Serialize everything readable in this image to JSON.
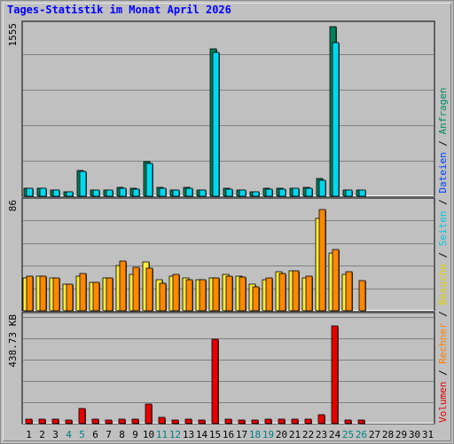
{
  "title": "Tages-Statistik im Monat April 2026",
  "legend": {
    "separator": "/",
    "items": [
      {
        "label": "Anfragen",
        "color": "#008a60"
      },
      {
        "label": "Dateien",
        "color": "#0040ff"
      },
      {
        "label": "Seiten",
        "color": "#00c8e0"
      },
      {
        "label": "Besuche",
        "color": "#e0d000"
      },
      {
        "label": "Rechner",
        "color": "#ff8000"
      },
      {
        "label": "Volumen",
        "color": "#e00000"
      }
    ]
  },
  "colors": {
    "background": "#c0c0c0",
    "requests": "#00805a",
    "files": "#00d8f0",
    "visits": "#ffee33",
    "hosts": "#ff8800",
    "volume": "#e80000",
    "weekend_day": "#008080",
    "weekday": "#000000",
    "title": "#0000ff"
  },
  "chart_data": {
    "type": "bar",
    "categories": [
      "1",
      "2",
      "3",
      "4",
      "5",
      "6",
      "7",
      "8",
      "9",
      "10",
      "11",
      "12",
      "13",
      "14",
      "15",
      "16",
      "17",
      "18",
      "19",
      "20",
      "21",
      "22",
      "23",
      "24",
      "25",
      "26",
      "27",
      "28",
      "29",
      "30",
      "31"
    ],
    "weekend_days": [
      "4",
      "5",
      "11",
      "12",
      "18",
      "19",
      "25",
      "26"
    ],
    "panels": [
      {
        "name": "top",
        "max_label": "1555",
        "max": 1555,
        "series": [
          {
            "name": "Anfragen",
            "values": [
              70,
              70,
              60,
              40,
              240,
              60,
              60,
              80,
              70,
              320,
              80,
              60,
              80,
              60,
              1350,
              70,
              60,
              40,
              70,
              70,
              70,
              80,
              160,
              1555,
              60,
              60,
              0,
              0,
              0,
              0,
              0
            ]
          },
          {
            "name": "Dateien",
            "values": [
              70,
              70,
              60,
              40,
              225,
              60,
              60,
              75,
              65,
              305,
              75,
              60,
              75,
              60,
              1320,
              65,
              60,
              40,
              65,
              65,
              70,
              70,
              150,
              1410,
              60,
              60,
              0,
              0,
              0,
              0,
              0
            ]
          }
        ]
      },
      {
        "name": "middle",
        "max_label": "86",
        "max": 86,
        "series": [
          {
            "name": "Besuche",
            "values": [
              26,
              28,
              26,
              21,
              28,
              23,
              26,
              36,
              29,
              39,
              25,
              28,
              26,
              25,
              26,
              29,
              28,
              21,
              25,
              31,
              32,
              26,
              74,
              46,
              29,
              0,
              0,
              0,
              0,
              0,
              0
            ]
          },
          {
            "name": "Rechner",
            "values": [
              28,
              28,
              26,
              21,
              30,
              23,
              26,
              40,
              35,
              34,
              22,
              29,
              25,
              25,
              26,
              28,
              27,
              19,
              26,
              30,
              32,
              28,
              81,
              49,
              31,
              24,
              0,
              0,
              0,
              0,
              0
            ]
          }
        ]
      },
      {
        "name": "bottom",
        "max_label": "438.73 KB",
        "max": 438.73,
        "series": [
          {
            "name": "Volumen",
            "values": [
              18,
              18,
              18,
              14,
              62,
              18,
              14,
              20,
              18,
              82,
              25,
              14,
              20,
              14,
              350,
              18,
              14,
              14,
              18,
              20,
              20,
              18,
              38,
              405,
              14,
              14,
              0,
              0,
              0,
              0,
              0
            ]
          }
        ]
      }
    ]
  }
}
